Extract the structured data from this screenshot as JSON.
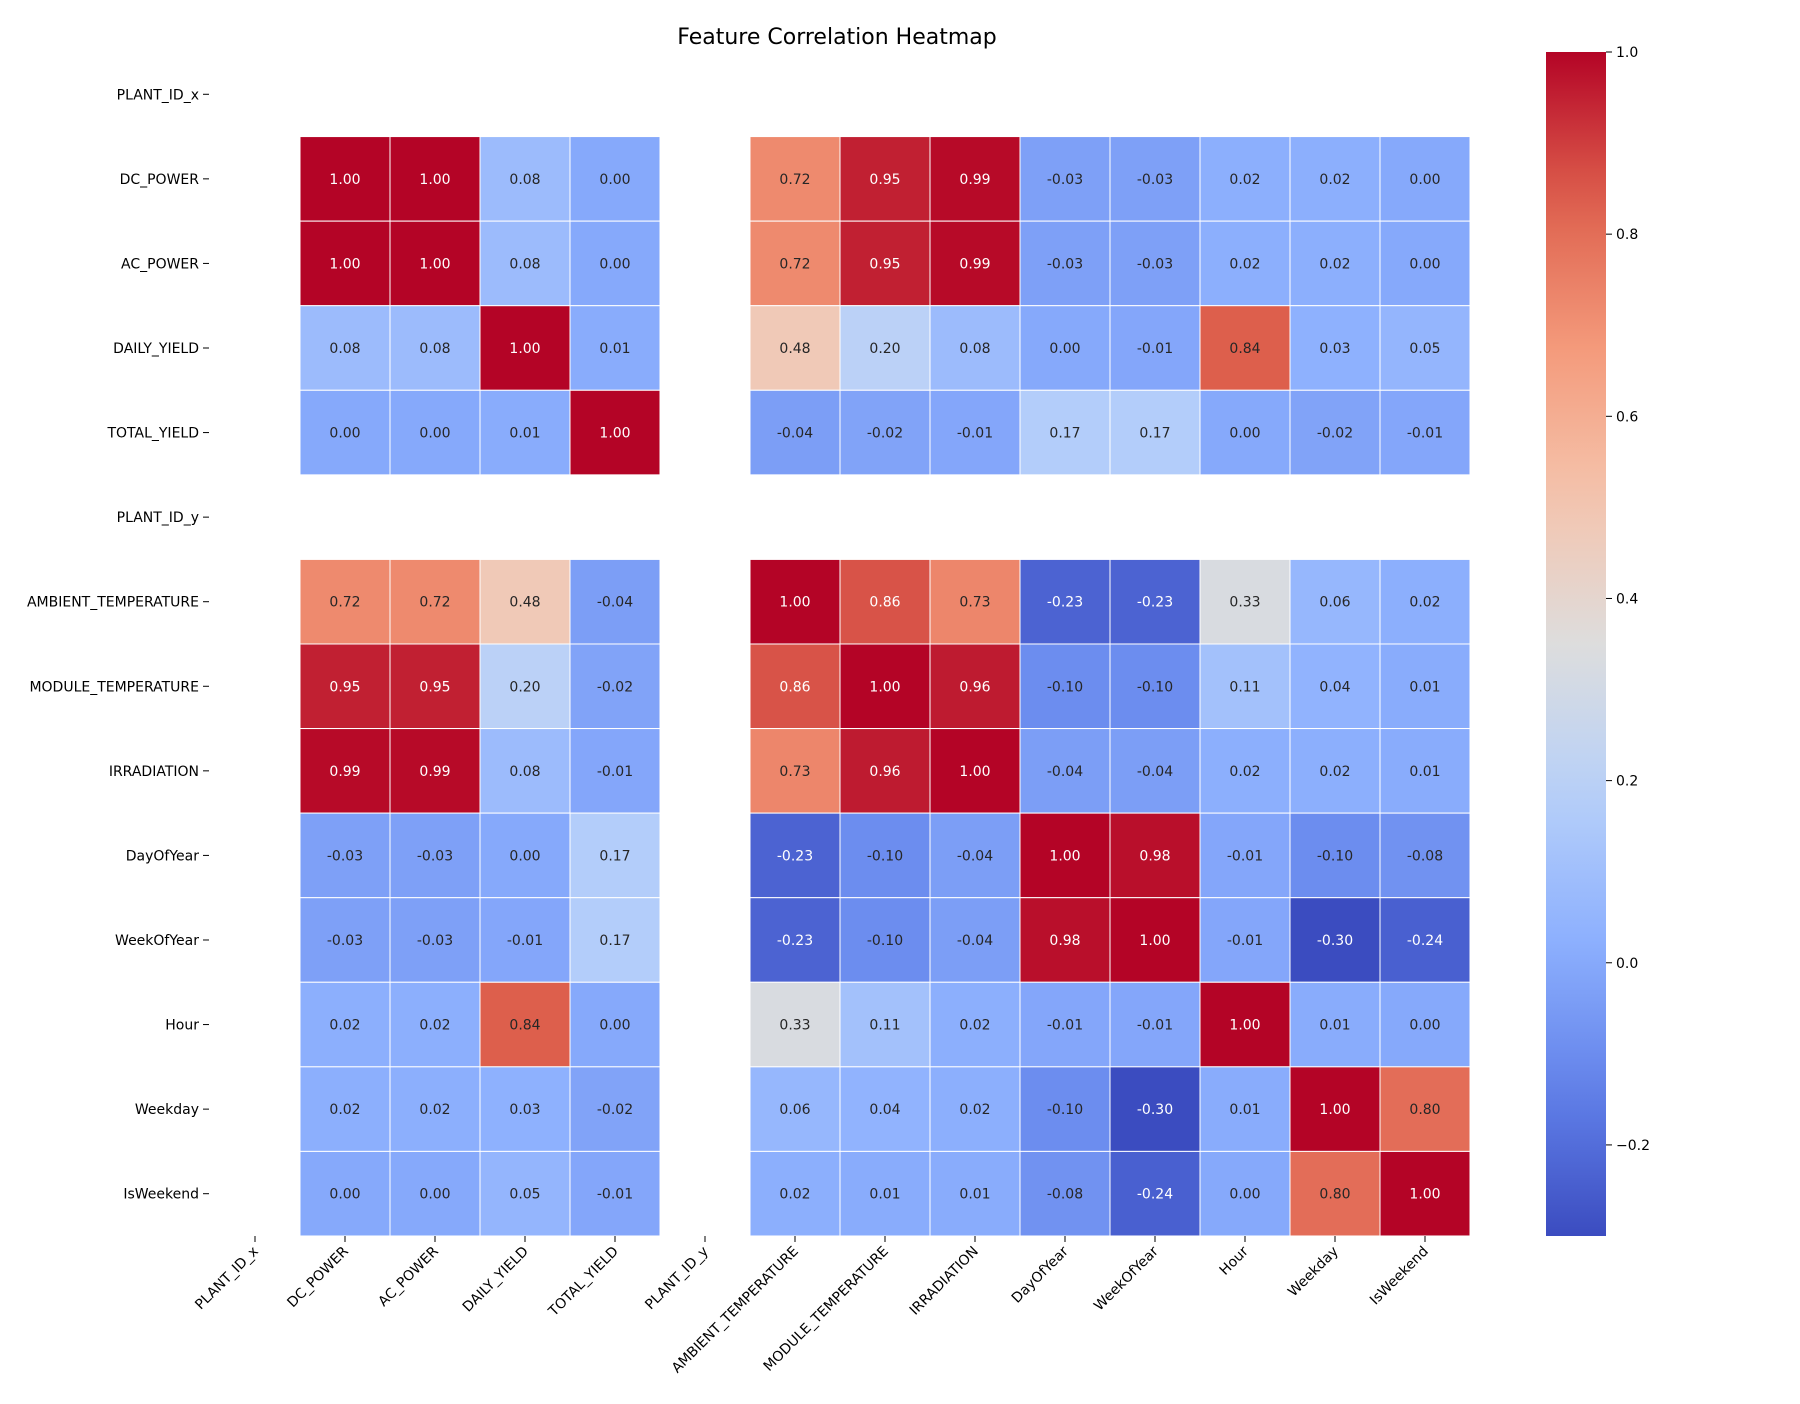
{
  "chart_data": {
    "type": "heatmap",
    "title": "Feature Correlation Heatmap",
    "rows": [
      "PLANT_ID_x",
      "DC_POWER",
      "AC_POWER",
      "DAILY_YIELD",
      "TOTAL_YIELD",
      "PLANT_ID_y",
      "AMBIENT_TEMPERATURE",
      "MODULE_TEMPERATURE",
      "IRRADIATION",
      "DayOfYear",
      "WeekOfYear",
      "Hour",
      "Weekday",
      "IsWeekend"
    ],
    "columns": [
      "PLANT_ID_x",
      "DC_POWER",
      "AC_POWER",
      "DAILY_YIELD",
      "TOTAL_YIELD",
      "PLANT_ID_y",
      "AMBIENT_TEMPERATURE",
      "MODULE_TEMPERATURE",
      "IRRADIATION",
      "DayOfYear",
      "WeekOfYear",
      "Hour",
      "Weekday",
      "IsWeekend"
    ],
    "values": [
      [
        null,
        null,
        null,
        null,
        null,
        null,
        null,
        null,
        null,
        null,
        null,
        null,
        null,
        null
      ],
      [
        null,
        1.0,
        1.0,
        0.08,
        0.0,
        null,
        0.72,
        0.95,
        0.99,
        -0.03,
        -0.03,
        0.02,
        0.02,
        0.0
      ],
      [
        null,
        1.0,
        1.0,
        0.08,
        0.0,
        null,
        0.72,
        0.95,
        0.99,
        -0.03,
        -0.03,
        0.02,
        0.02,
        0.0
      ],
      [
        null,
        0.08,
        0.08,
        1.0,
        0.01,
        null,
        0.48,
        0.2,
        0.08,
        -0.0,
        -0.01,
        0.84,
        0.03,
        0.05
      ],
      [
        null,
        0.0,
        0.0,
        0.01,
        1.0,
        null,
        -0.04,
        -0.02,
        -0.01,
        0.17,
        0.17,
        0.0,
        -0.02,
        -0.01
      ],
      [
        null,
        null,
        null,
        null,
        null,
        null,
        null,
        null,
        null,
        null,
        null,
        null,
        null,
        null
      ],
      [
        null,
        0.72,
        0.72,
        0.48,
        -0.04,
        null,
        1.0,
        0.86,
        0.73,
        -0.23,
        -0.23,
        0.33,
        0.06,
        0.02
      ],
      [
        null,
        0.95,
        0.95,
        0.2,
        -0.02,
        null,
        0.86,
        1.0,
        0.96,
        -0.1,
        -0.1,
        0.11,
        0.04,
        0.01
      ],
      [
        null,
        0.99,
        0.99,
        0.08,
        -0.01,
        null,
        0.73,
        0.96,
        1.0,
        -0.04,
        -0.04,
        0.02,
        0.02,
        0.01
      ],
      [
        null,
        -0.03,
        -0.03,
        -0.0,
        0.17,
        null,
        -0.23,
        -0.1,
        -0.04,
        1.0,
        0.98,
        -0.01,
        -0.1,
        -0.08
      ],
      [
        null,
        -0.03,
        -0.03,
        -0.01,
        0.17,
        null,
        -0.23,
        -0.1,
        -0.04,
        0.98,
        1.0,
        -0.01,
        -0.3,
        -0.24
      ],
      [
        null,
        0.02,
        0.02,
        0.84,
        0.0,
        null,
        0.33,
        0.11,
        0.02,
        -0.01,
        -0.01,
        1.0,
        0.01,
        0.0
      ],
      [
        null,
        0.02,
        0.02,
        0.03,
        -0.02,
        null,
        0.06,
        0.04,
        0.02,
        -0.1,
        -0.3,
        0.01,
        1.0,
        0.8
      ],
      [
        null,
        0.0,
        0.0,
        0.05,
        -0.01,
        null,
        0.02,
        0.01,
        0.01,
        -0.08,
        -0.24,
        0.0,
        0.8,
        1.0
      ]
    ],
    "value_format": "2 decimals",
    "colormap": "coolwarm",
    "vmin": -0.3,
    "vmax": 1.0,
    "colorbar_ticks": [
      "1.0",
      "0.8",
      "0.6",
      "0.4",
      "0.2",
      "0.0",
      "−0.2"
    ],
    "colorbar_tick_values": [
      1.0,
      0.8,
      0.6,
      0.4,
      0.2,
      0.0,
      -0.2
    ],
    "legend": "colorbar-right",
    "grid": false
  }
}
